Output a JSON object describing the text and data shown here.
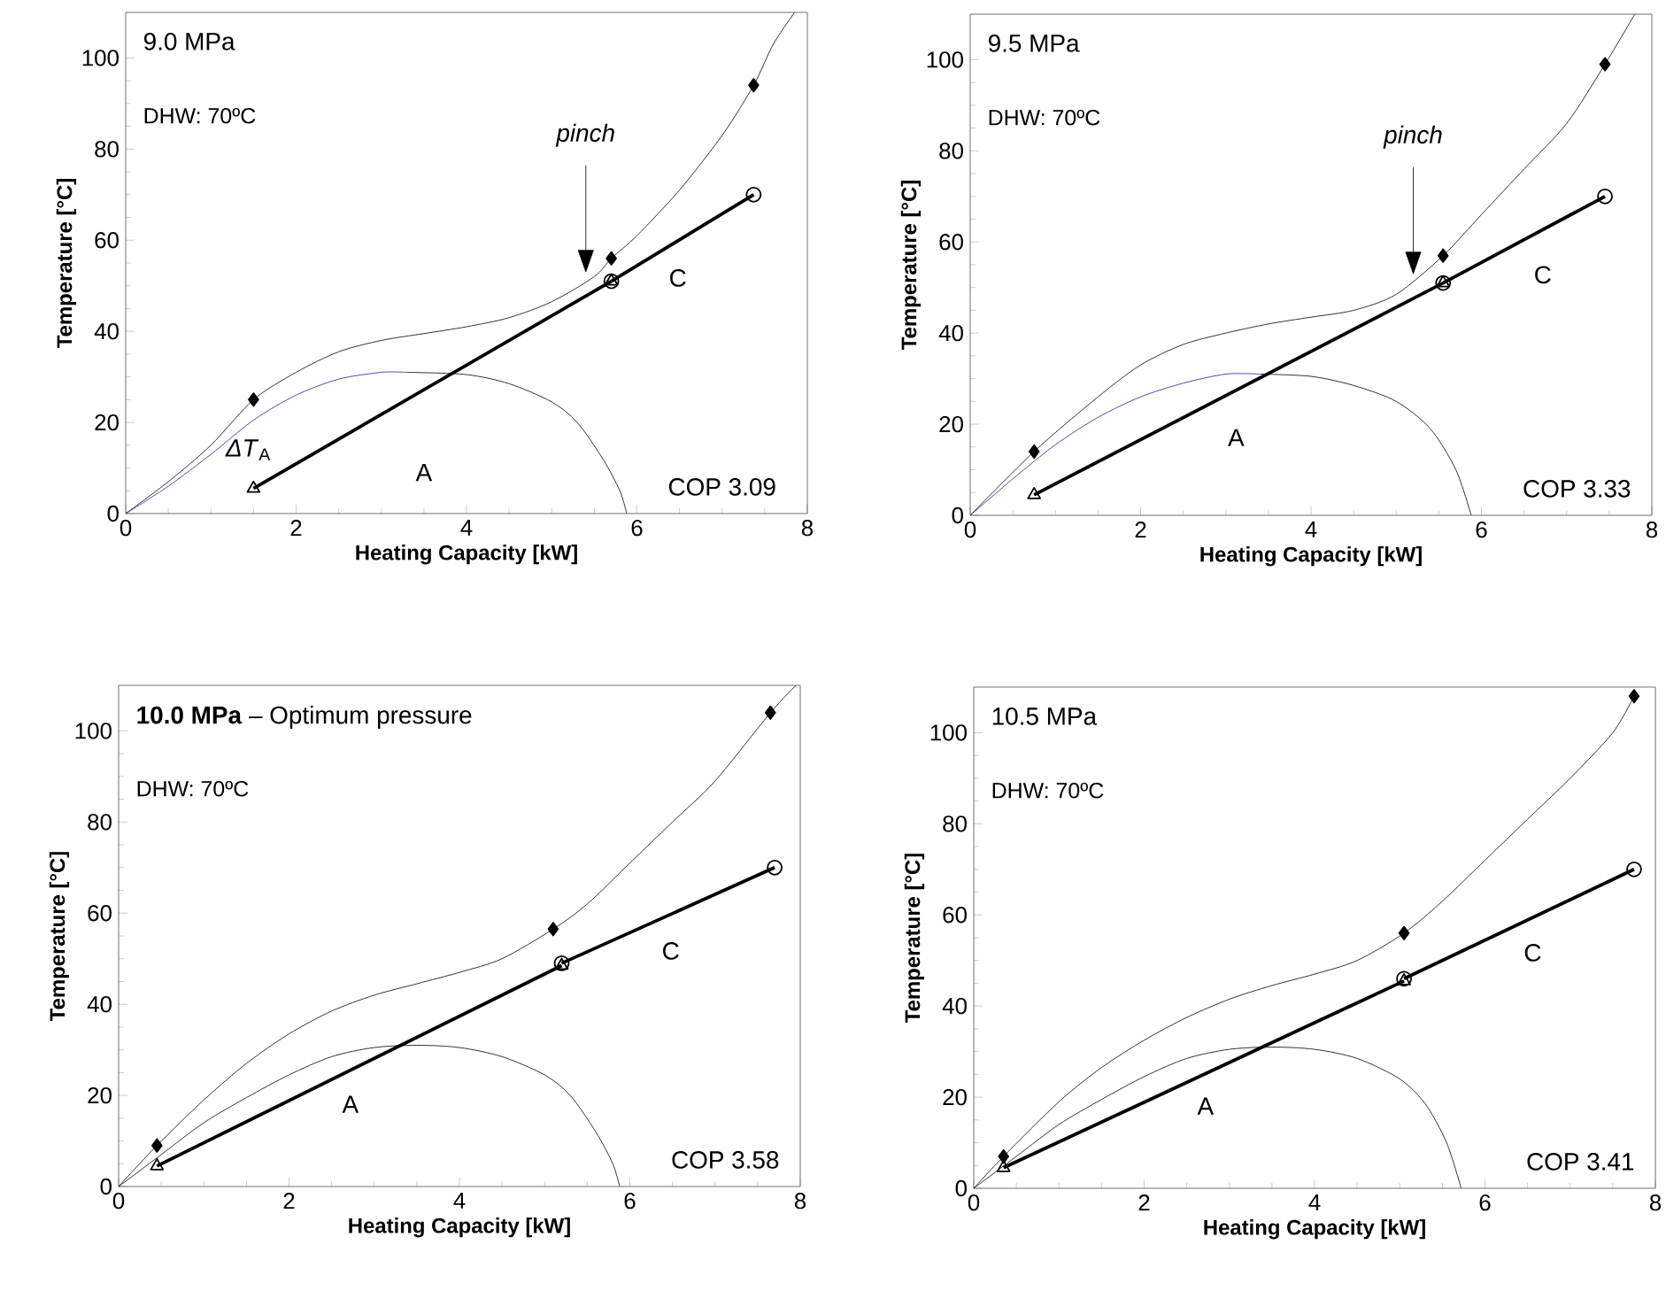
{
  "chart_data": [
    {
      "type": "line",
      "title": "9.0 MPa",
      "xlabel": "Heating Capacity [kW]",
      "ylabel": "Temperature [°C]",
      "xlim": [
        0,
        8
      ],
      "ylim": [
        0,
        110
      ],
      "xticks": [
        0,
        2,
        4,
        6,
        8
      ],
      "yticks": [
        0,
        20,
        40,
        60,
        80,
        100
      ],
      "annotations": [
        "DHW: 70ºC",
        "COP 3.09",
        "*pinch*",
        "A",
        "C",
        "*ΔT*$_{A}$"
      ],
      "series": [
        {
          "marker": "none",
          "color": "#000000",
          "x": [
            0,
            0.5,
            1,
            1.5,
            2,
            2.5,
            3,
            3.5,
            4,
            4.5,
            5,
            5.5,
            5.7,
            6,
            6.5,
            7,
            7.37,
            7.6,
            7.85
          ],
          "values": [
            0,
            7,
            15,
            25,
            31,
            35.5,
            38,
            39.5,
            41,
            43,
            46.5,
            52,
            56,
            61,
            71,
            83,
            94,
            103,
            110
          ]
        },
        {
          "marker": "none",
          "color": "#1f1fa0",
          "x": [
            0,
            0.5,
            1,
            1.5,
            2,
            2.5,
            3,
            3.3
          ],
          "values": [
            0,
            6,
            13,
            20.5,
            26,
            29.5,
            31,
            31
          ]
        },
        {
          "marker": "none",
          "color": "#000000",
          "x": [
            3.3,
            4,
            4.5,
            5,
            5.3,
            5.6,
            5.8,
            5.88
          ],
          "values": [
            31,
            30.5,
            28.5,
            24.5,
            20,
            12,
            5,
            0
          ]
        },
        {
          "type": "scatter",
          "marker": "diamond",
          "color": "#000000",
          "x": [
            1.5,
            5.7,
            7.37
          ],
          "values": [
            25,
            56,
            94
          ]
        },
        {
          "marker": "triangle",
          "color": "#000000",
          "x": [
            1.5,
            5.7
          ],
          "values": [
            5.5,
            51
          ]
        },
        {
          "marker": "circle",
          "color": "#000000",
          "x": [
            5.7,
            7.37
          ],
          "values": [
            51,
            70
          ]
        }
      ]
    },
    {
      "type": "line",
      "title": "9.5 MPa",
      "xlabel": "Heating Capacity [kW]",
      "ylabel": "Temperature [°C]",
      "xlim": [
        0,
        8
      ],
      "ylim": [
        0,
        110
      ],
      "xticks": [
        0,
        2,
        4,
        6,
        8
      ],
      "yticks": [
        0,
        20,
        40,
        60,
        80,
        100
      ],
      "annotations": [
        "DHW: 70ºC",
        "COP 3.33",
        "*pinch*",
        "A",
        "C"
      ],
      "series": [
        {
          "marker": "none",
          "color": "#000000",
          "x": [
            0,
            0.75,
            1.5,
            2,
            2.5,
            3,
            3.5,
            4,
            4.5,
            5,
            5.55,
            6,
            6.5,
            7,
            7.45,
            7.8
          ],
          "values": [
            0,
            14,
            26,
            33,
            37.5,
            40,
            42,
            43.5,
            45,
            48.5,
            57,
            66,
            76,
            86,
            99,
            110
          ]
        },
        {
          "marker": "none",
          "color": "#1f1fa0",
          "x": [
            0,
            0.5,
            1,
            1.5,
            2,
            2.5,
            3,
            3.4
          ],
          "values": [
            0,
            8,
            15.5,
            21.5,
            26,
            29,
            31,
            31
          ]
        },
        {
          "marker": "none",
          "color": "#000000",
          "x": [
            3.4,
            4,
            4.5,
            5,
            5.4,
            5.7,
            5.88
          ],
          "values": [
            31,
            30.5,
            28.5,
            25,
            19,
            10,
            0
          ]
        },
        {
          "type": "scatter",
          "marker": "diamond",
          "color": "#000000",
          "x": [
            0.75,
            5.55,
            7.45
          ],
          "values": [
            14,
            57,
            99
          ]
        },
        {
          "marker": "triangle",
          "color": "#000000",
          "x": [
            0.75,
            5.55
          ],
          "values": [
            4.5,
            51
          ]
        },
        {
          "marker": "circle",
          "color": "#000000",
          "x": [
            5.55,
            7.45
          ],
          "values": [
            51,
            70
          ]
        }
      ]
    },
    {
      "type": "line",
      "title": "**10.0 MPa** – Optimum pressure",
      "xlabel": "Heating Capacity [kW]",
      "ylabel": "Temperature [°C]",
      "xlim": [
        0,
        8
      ],
      "ylim": [
        0,
        110
      ],
      "xticks": [
        0,
        2,
        4,
        6,
        8
      ],
      "yticks": [
        0,
        20,
        40,
        60,
        80,
        100
      ],
      "annotations": [
        "DHW: 70ºC",
        "COP 3.58",
        "A",
        "C"
      ],
      "series": [
        {
          "marker": "none",
          "color": "#000000",
          "x": [
            0,
            0.45,
            1,
            1.5,
            2,
            2.5,
            3,
            3.5,
            4,
            4.5,
            5.1,
            5.5,
            6,
            6.5,
            7,
            7.65,
            7.95
          ],
          "values": [
            0,
            9,
            19,
            27,
            33.5,
            38.5,
            42,
            44.5,
            47,
            50,
            56.5,
            62,
            71,
            80,
            89,
            104,
            110
          ]
        },
        {
          "marker": "none",
          "color": "#000000",
          "x": [
            0,
            0.5,
            1,
            1.5,
            2,
            2.5,
            3,
            3.5,
            4,
            4.5,
            5,
            5.3,
            5.6,
            5.8,
            5.88
          ],
          "values": [
            0,
            7,
            14,
            19.5,
            24.5,
            28.5,
            30.5,
            31,
            30.5,
            28.5,
            24.5,
            20,
            12,
            5,
            0
          ]
        },
        {
          "type": "scatter",
          "marker": "diamond",
          "color": "#000000",
          "x": [
            0.45,
            5.1,
            7.65
          ],
          "values": [
            9,
            56.5,
            104
          ]
        },
        {
          "marker": "triangle",
          "color": "#000000",
          "x": [
            0.45,
            5.2
          ],
          "values": [
            4.5,
            48.5
          ]
        },
        {
          "marker": "circle",
          "color": "#000000",
          "x": [
            5.2,
            7.7
          ],
          "values": [
            49,
            70
          ]
        }
      ]
    },
    {
      "type": "line",
      "title": "10.5 MPa",
      "xlabel": "Heating Capacity [kW]",
      "ylabel": "Temperature [°C]",
      "xlim": [
        0,
        8
      ],
      "ylim": [
        0,
        110
      ],
      "xticks": [
        0,
        2,
        4,
        6,
        8
      ],
      "yticks": [
        0,
        20,
        40,
        60,
        80,
        100
      ],
      "annotations": [
        "DHW: 70ºC",
        "COP 3.41",
        "A",
        "C"
      ],
      "series": [
        {
          "marker": "none",
          "color": "#000000",
          "x": [
            0,
            0.35,
            1,
            1.5,
            2,
            2.5,
            3,
            3.5,
            4,
            4.5,
            5.05,
            5.5,
            6,
            6.5,
            7,
            7.5,
            7.75
          ],
          "values": [
            0,
            7,
            19,
            26.5,
            32.5,
            37.5,
            41.5,
            44.5,
            47,
            50,
            56,
            63,
            72,
            81,
            90,
            100,
            108
          ]
        },
        {
          "marker": "none",
          "color": "#000000",
          "x": [
            0,
            0.5,
            1,
            1.5,
            2,
            2.5,
            3,
            3.5,
            4,
            4.5,
            5,
            5.3,
            5.55,
            5.72
          ],
          "values": [
            0,
            7,
            14,
            19.5,
            24.5,
            28.5,
            30.5,
            31,
            30.5,
            28.5,
            24,
            18.5,
            10,
            0
          ]
        },
        {
          "type": "scatter",
          "marker": "diamond",
          "color": "#000000",
          "x": [
            0.35,
            5.05,
            7.75
          ],
          "values": [
            7,
            56,
            108
          ]
        },
        {
          "marker": "triangle",
          "color": "#000000",
          "x": [
            0.35,
            5.05
          ],
          "values": [
            4.5,
            45.5
          ]
        },
        {
          "marker": "circle",
          "color": "#000000",
          "x": [
            5.05,
            7.75
          ],
          "values": [
            46,
            70
          ]
        }
      ]
    }
  ]
}
